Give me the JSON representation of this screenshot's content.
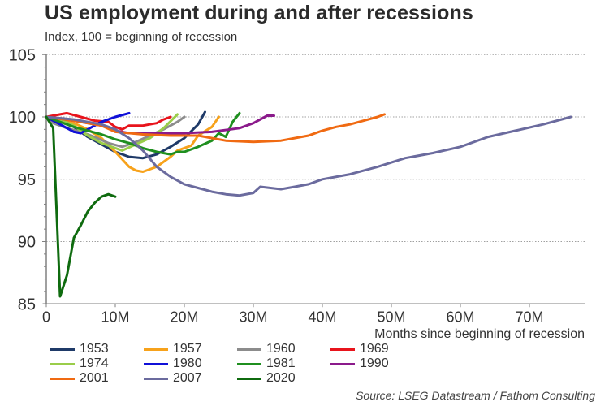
{
  "chart_data": {
    "type": "line",
    "title": "US employment during and after recessions",
    "subtitle": "Index, 100 = beginning of recession",
    "xlabel": "Months since beginning of recession",
    "ylabel": "",
    "xlim": [
      0,
      80
    ],
    "ylim": [
      85,
      105
    ],
    "x_ticks": [
      0,
      10,
      20,
      30,
      40,
      50,
      60,
      70
    ],
    "x_tick_labels": [
      "0",
      "10M",
      "20M",
      "30M",
      "40M",
      "50M",
      "60M",
      "70M"
    ],
    "y_ticks": [
      85,
      90,
      95,
      100,
      105
    ],
    "y_tick_labels": [
      "85",
      "90",
      "95",
      "100",
      "105"
    ],
    "grid": "horizontal dotted at major y ticks",
    "legend_position": "bottom",
    "source": "Source: LSEG Datastream / Fathom Consulting",
    "series": [
      {
        "name": "1953",
        "color": "#1f3a68",
        "points": [
          [
            0,
            100
          ],
          [
            2,
            99.6
          ],
          [
            4,
            99.2
          ],
          [
            6,
            98.4
          ],
          [
            8,
            97.8
          ],
          [
            10,
            97.2
          ],
          [
            12,
            96.8
          ],
          [
            14,
            96.7
          ],
          [
            16,
            97.0
          ],
          [
            18,
            97.6
          ],
          [
            20,
            98.3
          ],
          [
            22,
            99.4
          ],
          [
            23,
            100.4
          ]
        ]
      },
      {
        "name": "1957",
        "color": "#f7a21b",
        "points": [
          [
            0,
            100
          ],
          [
            2,
            99.8
          ],
          [
            4,
            99.5
          ],
          [
            6,
            99.0
          ],
          [
            8,
            98.3
          ],
          [
            10,
            97.2
          ],
          [
            12,
            96.0
          ],
          [
            13,
            95.7
          ],
          [
            14,
            95.6
          ],
          [
            16,
            96.0
          ],
          [
            18,
            96.8
          ],
          [
            19,
            97.3
          ],
          [
            21,
            97.7
          ],
          [
            22,
            98.5
          ],
          [
            24,
            99.2
          ],
          [
            25,
            100.0
          ]
        ]
      },
      {
        "name": "1960",
        "color": "#8c8c8c",
        "points": [
          [
            0,
            100
          ],
          [
            1,
            99.5
          ],
          [
            3,
            99.1
          ],
          [
            5,
            98.8
          ],
          [
            7,
            98.4
          ],
          [
            9,
            97.9
          ],
          [
            11,
            97.6
          ],
          [
            13,
            98.0
          ],
          [
            15,
            98.5
          ],
          [
            17,
            99.0
          ],
          [
            19,
            99.6
          ],
          [
            20,
            100.0
          ]
        ]
      },
      {
        "name": "1969",
        "color": "#e8141c",
        "points": [
          [
            0,
            100
          ],
          [
            2,
            100.2
          ],
          [
            3,
            100.3
          ],
          [
            5,
            100.0
          ],
          [
            7,
            99.7
          ],
          [
            9,
            99.6
          ],
          [
            10,
            99.2
          ],
          [
            11,
            99.0
          ],
          [
            12,
            99.3
          ],
          [
            14,
            99.3
          ],
          [
            16,
            99.5
          ],
          [
            17,
            99.8
          ],
          [
            18,
            100.0
          ]
        ]
      },
      {
        "name": "1974",
        "color": "#9acd4a",
        "points": [
          [
            0,
            100
          ],
          [
            2,
            99.8
          ],
          [
            4,
            99.3
          ],
          [
            6,
            98.5
          ],
          [
            8,
            97.9
          ],
          [
            10,
            97.5
          ],
          [
            11,
            97.3
          ],
          [
            13,
            97.8
          ],
          [
            15,
            98.3
          ],
          [
            17,
            99.1
          ],
          [
            19,
            100.2
          ]
        ]
      },
      {
        "name": "1980",
        "color": "#1010d8",
        "points": [
          [
            0,
            100
          ],
          [
            2,
            99.4
          ],
          [
            4,
            98.8
          ],
          [
            5,
            98.7
          ],
          [
            6,
            99.0
          ],
          [
            8,
            99.6
          ],
          [
            10,
            100.0
          ],
          [
            12,
            100.3
          ]
        ]
      },
      {
        "name": "1981",
        "color": "#1f8f1f",
        "points": [
          [
            0,
            100
          ],
          [
            2,
            99.6
          ],
          [
            4,
            99.2
          ],
          [
            6,
            98.9
          ],
          [
            8,
            98.6
          ],
          [
            10,
            98.2
          ],
          [
            12,
            97.9
          ],
          [
            14,
            97.5
          ],
          [
            16,
            97.2
          ],
          [
            18,
            97.0
          ],
          [
            19,
            97.2
          ],
          [
            20,
            97.2
          ],
          [
            22,
            97.6
          ],
          [
            24,
            98.1
          ],
          [
            25,
            98.7
          ],
          [
            26,
            98.4
          ],
          [
            27,
            99.6
          ],
          [
            28,
            100.3
          ]
        ]
      },
      {
        "name": "1990",
        "color": "#8b1a8b",
        "points": [
          [
            0,
            100
          ],
          [
            4,
            99.7
          ],
          [
            8,
            99.3
          ],
          [
            10,
            98.9
          ],
          [
            12,
            98.7
          ],
          [
            16,
            98.7
          ],
          [
            20,
            98.7
          ],
          [
            24,
            98.8
          ],
          [
            28,
            99.1
          ],
          [
            30,
            99.5
          ],
          [
            32,
            100.1
          ],
          [
            33,
            100.1
          ]
        ]
      },
      {
        "name": "2001",
        "color": "#f06a12",
        "points": [
          [
            0,
            100
          ],
          [
            4,
            99.7
          ],
          [
            8,
            99.3
          ],
          [
            10,
            98.8
          ],
          [
            14,
            98.6
          ],
          [
            18,
            98.5
          ],
          [
            22,
            98.5
          ],
          [
            26,
            98.1
          ],
          [
            30,
            98.0
          ],
          [
            34,
            98.1
          ],
          [
            38,
            98.5
          ],
          [
            40,
            98.9
          ],
          [
            42,
            99.2
          ],
          [
            44,
            99.4
          ],
          [
            46,
            99.7
          ],
          [
            48,
            100.0
          ],
          [
            49,
            100.2
          ]
        ]
      },
      {
        "name": "2007",
        "color": "#6b6b9e",
        "points": [
          [
            0,
            100
          ],
          [
            4,
            99.8
          ],
          [
            8,
            99.4
          ],
          [
            10,
            99.0
          ],
          [
            12,
            98.3
          ],
          [
            14,
            97.3
          ],
          [
            16,
            96.0
          ],
          [
            18,
            95.2
          ],
          [
            20,
            94.6
          ],
          [
            22,
            94.3
          ],
          [
            24,
            94.0
          ],
          [
            26,
            93.8
          ],
          [
            28,
            93.7
          ],
          [
            30,
            93.9
          ],
          [
            31,
            94.4
          ],
          [
            34,
            94.2
          ],
          [
            36,
            94.4
          ],
          [
            38,
            94.6
          ],
          [
            40,
            95.0
          ],
          [
            44,
            95.4
          ],
          [
            48,
            96.0
          ],
          [
            52,
            96.7
          ],
          [
            56,
            97.1
          ],
          [
            60,
            97.6
          ],
          [
            64,
            98.4
          ],
          [
            68,
            98.9
          ],
          [
            72,
            99.4
          ],
          [
            76,
            100.0
          ]
        ]
      },
      {
        "name": "2020",
        "color": "#0f6b0f",
        "points": [
          [
            0,
            100
          ],
          [
            1,
            99.1
          ],
          [
            2,
            85.6
          ],
          [
            3,
            87.3
          ],
          [
            4,
            90.3
          ],
          [
            5,
            91.3
          ],
          [
            6,
            92.4
          ],
          [
            7,
            93.1
          ],
          [
            8,
            93.6
          ],
          [
            9,
            93.8
          ],
          [
            10,
            93.6
          ]
        ]
      }
    ]
  }
}
